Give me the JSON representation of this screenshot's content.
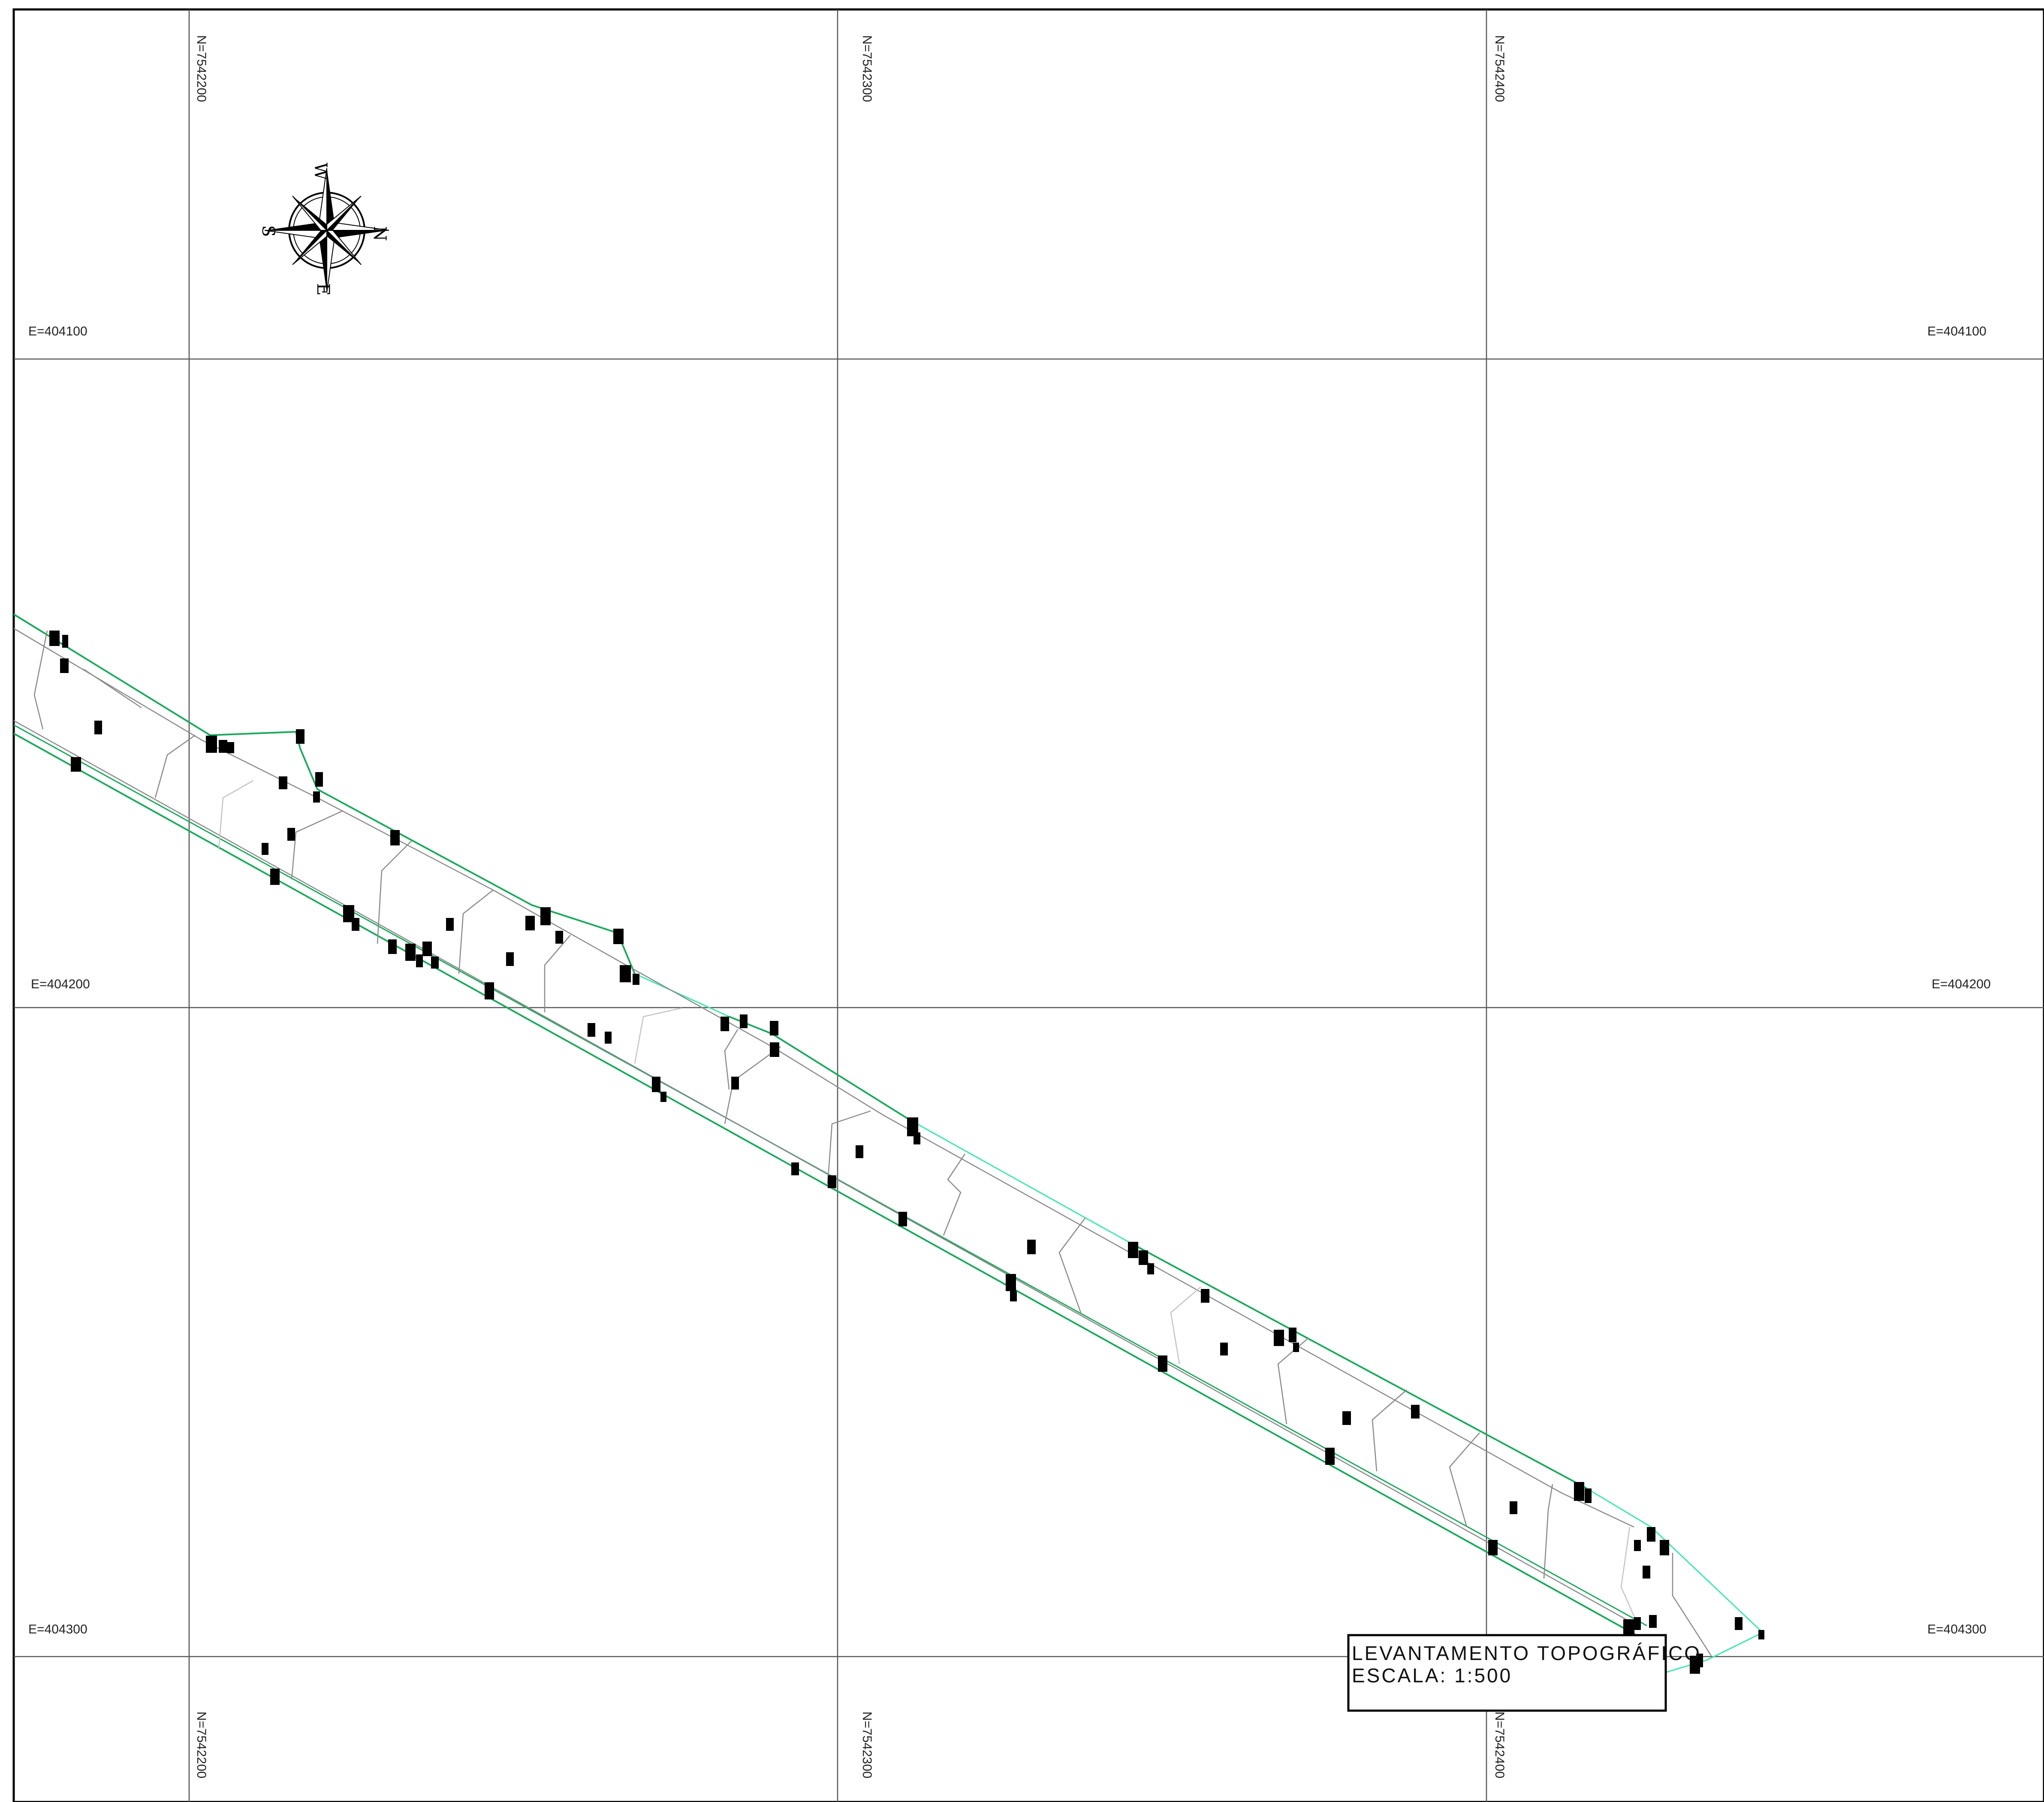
{
  "grid": {
    "northing_labels": [
      "N=7542200",
      "N=7542300",
      "N=7542400"
    ],
    "easting_labels": [
      "E=404100",
      "E=404200",
      "E=404300"
    ]
  },
  "compass": {
    "north": "N",
    "south": "S",
    "east": "E",
    "west": "W"
  },
  "title_block": {
    "title": "LEVANTAMENTO TOPOGRÁFICO",
    "scale": "ESCALA: 1:500"
  },
  "colors": {
    "border": "#000000",
    "grid": "#555555",
    "boundary": "#1fa95f",
    "boundary_light": "#3ee6b0",
    "contour": "#8a8a8a",
    "contour_light": "#c4c4c4",
    "marker": "#000000"
  }
}
